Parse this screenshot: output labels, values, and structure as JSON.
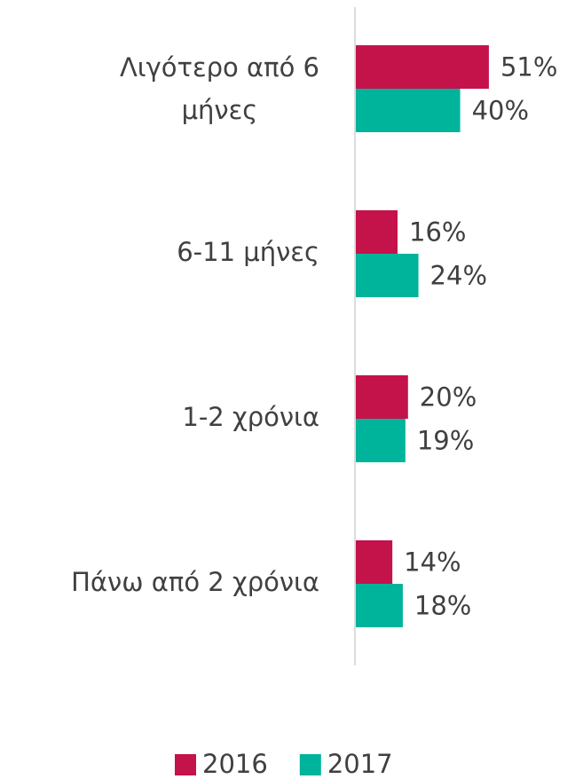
{
  "chart_data": {
    "type": "bar",
    "orientation": "horizontal",
    "categories": [
      "Λιγότερο από 6 μήνες",
      "6-11 μήνες",
      "1-2 χρόνια",
      "Πάνω από 2 χρόνια"
    ],
    "series": [
      {
        "name": "2016",
        "color": "#c4124a",
        "values": [
          51,
          16,
          20,
          14
        ],
        "value_labels": [
          "51%",
          "16%",
          "20%",
          "14%"
        ]
      },
      {
        "name": "2017",
        "color": "#00b39b",
        "values": [
          40,
          24,
          19,
          18
        ],
        "value_labels": [
          "40%",
          "24%",
          "19%",
          "18%"
        ]
      }
    ],
    "legend": "bottom"
  }
}
